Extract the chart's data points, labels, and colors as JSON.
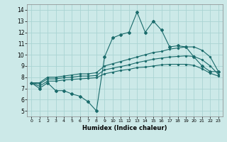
{
  "title": "",
  "xlabel": "Humidex (Indice chaleur)",
  "xlim": [
    -0.5,
    23.5
  ],
  "ylim": [
    4.5,
    14.5
  ],
  "yticks": [
    5,
    6,
    7,
    8,
    9,
    10,
    11,
    12,
    13,
    14
  ],
  "xtick_labels": [
    "0",
    "1",
    "2",
    "3",
    "4",
    "5",
    "6",
    "7",
    "8",
    "9",
    "10",
    "11",
    "12",
    "13",
    "14",
    "15",
    "16",
    "17",
    "18",
    "19",
    "20",
    "21",
    "22",
    "23"
  ],
  "background_color": "#cce9e8",
  "grid_color": "#aad4d3",
  "line_color": "#1a6b6b",
  "series_main": {
    "x": [
      0,
      1,
      2,
      3,
      4,
      5,
      6,
      7,
      8,
      9,
      10,
      11,
      12,
      13,
      14,
      15,
      16,
      17,
      18,
      19,
      20,
      21,
      22,
      23
    ],
    "y": [
      7.5,
      7.0,
      7.5,
      6.8,
      6.8,
      6.5,
      6.3,
      5.8,
      5.0,
      9.8,
      11.5,
      11.8,
      12.0,
      13.8,
      12.0,
      13.0,
      12.2,
      10.7,
      10.8,
      10.7,
      9.8,
      9.0,
      8.5,
      8.5
    ]
  },
  "series_upper": {
    "x": [
      0,
      1,
      2,
      3,
      4,
      5,
      6,
      7,
      8,
      9,
      10,
      11,
      12,
      13,
      14,
      15,
      16,
      17,
      18,
      19,
      20,
      21,
      22,
      23
    ],
    "y": [
      7.5,
      7.5,
      8.0,
      8.0,
      8.1,
      8.2,
      8.3,
      8.3,
      8.4,
      9.0,
      9.2,
      9.4,
      9.6,
      9.8,
      10.0,
      10.2,
      10.3,
      10.5,
      10.6,
      10.7,
      10.7,
      10.4,
      9.8,
      8.5
    ]
  },
  "series_mid": {
    "x": [
      0,
      1,
      2,
      3,
      4,
      5,
      6,
      7,
      8,
      9,
      10,
      11,
      12,
      13,
      14,
      15,
      16,
      17,
      18,
      19,
      20,
      21,
      22,
      23
    ],
    "y": [
      7.5,
      7.4,
      7.85,
      7.85,
      7.95,
      8.0,
      8.1,
      8.1,
      8.15,
      8.65,
      8.8,
      8.95,
      9.1,
      9.3,
      9.45,
      9.6,
      9.7,
      9.8,
      9.85,
      9.9,
      9.85,
      9.55,
      9.0,
      8.25
    ]
  },
  "series_lower": {
    "x": [
      0,
      1,
      2,
      3,
      4,
      5,
      6,
      7,
      8,
      9,
      10,
      11,
      12,
      13,
      14,
      15,
      16,
      17,
      18,
      19,
      20,
      21,
      22,
      23
    ],
    "y": [
      7.5,
      7.2,
      7.65,
      7.65,
      7.75,
      7.8,
      7.85,
      7.9,
      7.95,
      8.3,
      8.45,
      8.6,
      8.7,
      8.85,
      8.9,
      9.0,
      9.1,
      9.15,
      9.15,
      9.15,
      9.05,
      8.75,
      8.35,
      8.1
    ]
  }
}
